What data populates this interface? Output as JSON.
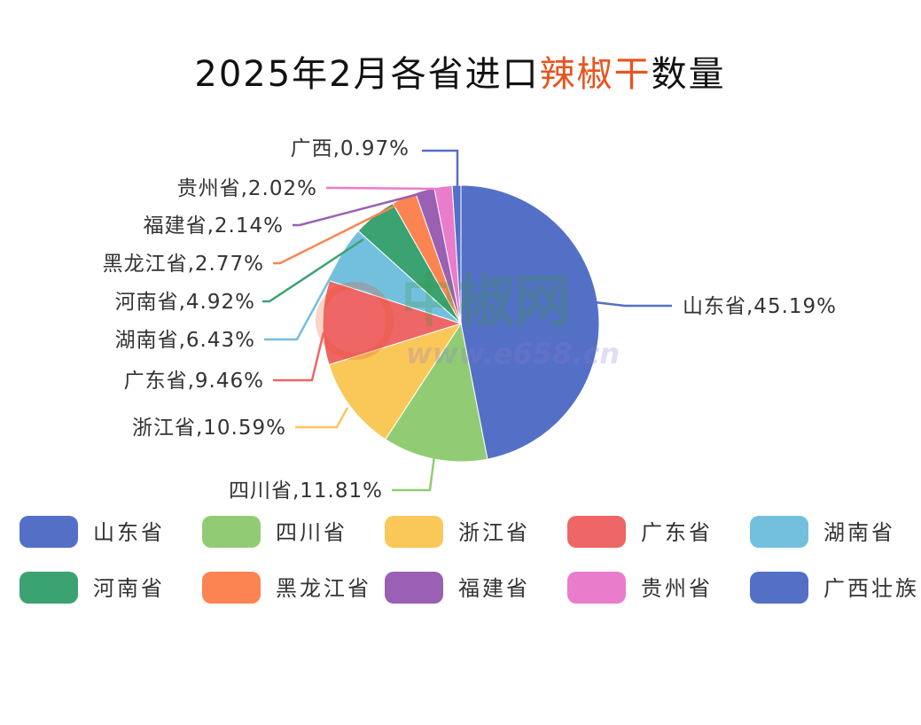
{
  "chart_data": {
    "type": "pie",
    "title": {
      "prefix": "2025年2月各省进口",
      "highlight": "辣椒干",
      "suffix": "数量",
      "highlight_color": "#e8541e"
    },
    "slices": [
      {
        "name": "山东省",
        "label": "山东省,45.19%",
        "value": 45.19,
        "color": "#5470c6"
      },
      {
        "name": "四川省",
        "label": "四川省,11.81%",
        "value": 11.81,
        "color": "#91cc75"
      },
      {
        "name": "浙江省",
        "label": "浙江省,10.59%",
        "value": 10.59,
        "color": "#fac858"
      },
      {
        "name": "广东省",
        "label": "广东省,9.46%",
        "value": 9.46,
        "color": "#ee6666"
      },
      {
        "name": "湖南省",
        "label": "湖南省,6.43%",
        "value": 6.43,
        "color": "#73c0de"
      },
      {
        "name": "河南省",
        "label": "河南省,4.92%",
        "value": 4.92,
        "color": "#3ba272"
      },
      {
        "name": "黑龙江省",
        "label": "黑龙江省,2.77%",
        "value": 2.77,
        "color": "#fc8452"
      },
      {
        "name": "福建省",
        "label": "福建省,2.14%",
        "value": 2.14,
        "color": "#9a60b4"
      },
      {
        "name": "贵州省",
        "label": "贵州省,2.02%",
        "value": 2.02,
        "color": "#ea7ccc"
      },
      {
        "name": "广西壮族自治区",
        "label": "广西,0.97%",
        "value": 0.97,
        "color": "#5470c6"
      }
    ],
    "legend_placement": "bottom"
  },
  "watermark": {
    "text": "中椒网",
    "url": "www.e658.cn"
  }
}
